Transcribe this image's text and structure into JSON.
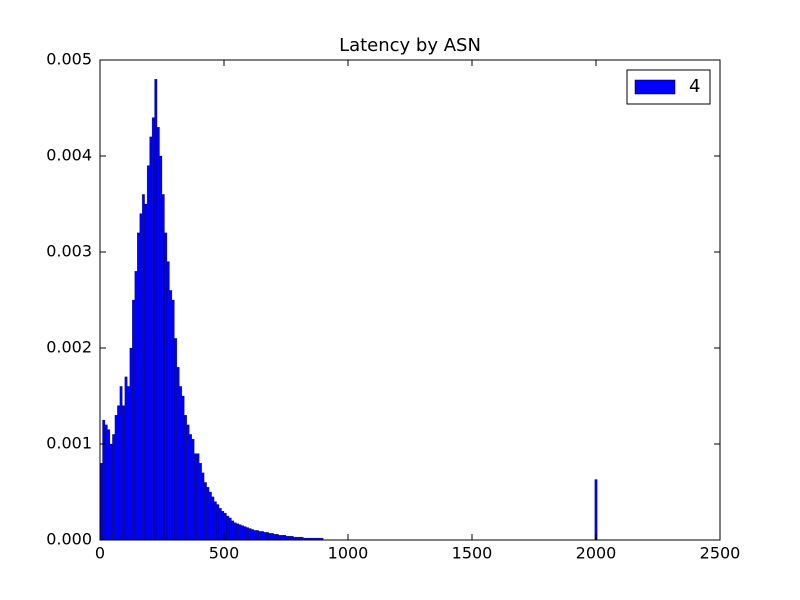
{
  "chart_data": {
    "type": "histogram",
    "title": "Latency by ASN",
    "bins": [
      0,
      10,
      20,
      30,
      40,
      50,
      60,
      70,
      80,
      90,
      100,
      110,
      120,
      130,
      140,
      150,
      160,
      170,
      180,
      190,
      200,
      210,
      220,
      230,
      240,
      250,
      260,
      270,
      280,
      290,
      300,
      310,
      320,
      330,
      340,
      350,
      360,
      370,
      380,
      390,
      400,
      410,
      420,
      430,
      440,
      450,
      460,
      470,
      480,
      490,
      500,
      510,
      520,
      530,
      540,
      550,
      560,
      570,
      580,
      590,
      600,
      610,
      620,
      630,
      640,
      650,
      660,
      670,
      680,
      690,
      700,
      710,
      720,
      730,
      740,
      750,
      760,
      770,
      780,
      790,
      800,
      810,
      820,
      830,
      840,
      850,
      860,
      870,
      880,
      890,
      900,
      1995,
      2005
    ],
    "series": [
      {
        "name": "4",
        "color": "#0000ff",
        "values": [
          0.0008,
          0.00125,
          0.0012,
          0.00115,
          0.001,
          0.0011,
          0.0013,
          0.0014,
          0.0016,
          0.0014,
          0.0017,
          0.0016,
          0.002,
          0.0025,
          0.0028,
          0.0032,
          0.0034,
          0.0036,
          0.0035,
          0.0039,
          0.0042,
          0.0044,
          0.0048,
          0.0043,
          0.004,
          0.0036,
          0.0032,
          0.0029,
          0.0026,
          0.0025,
          0.0021,
          0.0018,
          0.0016,
          0.0015,
          0.0013,
          0.0012,
          0.0011,
          0.00105,
          0.0009,
          0.0009,
          0.0008,
          0.0007,
          0.0006,
          0.00055,
          0.0005,
          0.00045,
          0.0004,
          0.00037,
          0.00033,
          0.0003,
          0.00028,
          0.00025,
          0.00023,
          0.0002,
          0.00018,
          0.00017,
          0.00016,
          0.00015,
          0.00014,
          0.00013,
          0.00012,
          0.00011,
          0.0001,
          0.0001,
          9e-05,
          9e-05,
          8e-05,
          8e-05,
          7e-05,
          7e-05,
          6e-05,
          6e-05,
          5e-05,
          5e-05,
          5e-05,
          4e-05,
          4e-05,
          4e-05,
          3e-05,
          3e-05,
          3e-05,
          3e-05,
          2e-05,
          2e-05,
          2e-05,
          2e-05,
          2e-05,
          2e-05,
          2e-05,
          2e-05,
          0,
          0.00063
        ]
      }
    ],
    "xlim": [
      0,
      2500
    ],
    "xticks": [
      0,
      500,
      1000,
      1500,
      2000,
      2500
    ],
    "ylim": [
      0,
      0.005
    ],
    "yticks": [
      {
        "value": 0,
        "label": "0.000"
      },
      {
        "value": 0.001,
        "label": "0.001"
      },
      {
        "value": 0.002,
        "label": "0.002"
      },
      {
        "value": 0.003,
        "label": "0.003"
      },
      {
        "value": 0.004,
        "label": "0.004"
      },
      {
        "value": 0.005,
        "label": "0.005"
      }
    ],
    "legend": "upper right"
  }
}
